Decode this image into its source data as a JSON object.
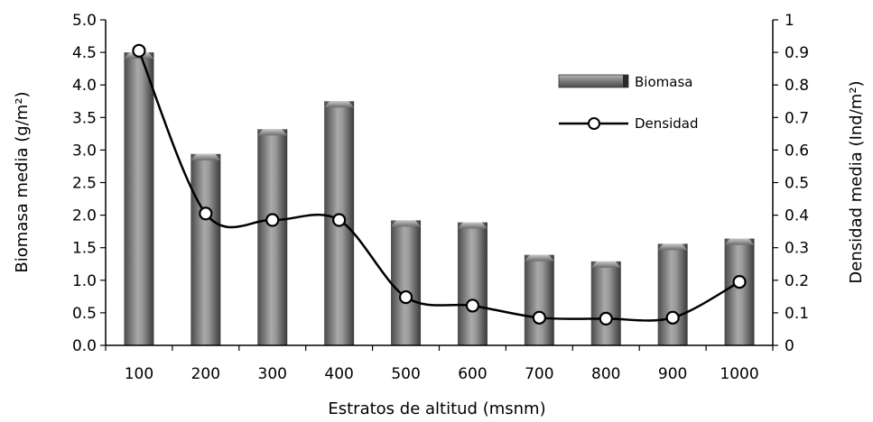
{
  "chart_data": {
    "type": "bar",
    "categories": [
      "100",
      "200",
      "300",
      "400",
      "500",
      "600",
      "700",
      "800",
      "900",
      "1000"
    ],
    "series": [
      {
        "name": "Biomasa",
        "type": "bar",
        "axis": "left",
        "color": "#7f7f7f",
        "values": [
          4.5,
          2.94,
          3.32,
          3.75,
          1.92,
          1.89,
          1.39,
          1.29,
          1.56,
          1.64
        ]
      },
      {
        "name": "Densidad",
        "type": "line",
        "axis": "right",
        "color": "#000000",
        "marker": "circle-open",
        "smooth": true,
        "values": [
          0.905,
          0.405,
          0.385,
          0.385,
          0.148,
          0.122,
          0.085,
          0.082,
          0.085,
          0.195
        ]
      }
    ],
    "xlabel": "Estratos de altitud (msnm)",
    "ylabel": "Biomasa media (g/m²)",
    "y2label": "Densidad media (Ind/m²)",
    "ylim": [
      0,
      5
    ],
    "y2lim": [
      0,
      1
    ],
    "yticks": [
      "0.0",
      "0.5",
      "1.0",
      "1.5",
      "2.0",
      "2.5",
      "3.0",
      "3.5",
      "4.0",
      "4.5",
      "5.0"
    ],
    "y2ticks": [
      "0",
      "0.1",
      "0.2",
      "0.3",
      "0.4",
      "0.5",
      "0.6",
      "0.7",
      "0.8",
      "0.9",
      "1"
    ],
    "grid": false,
    "legend_position": "top-right"
  }
}
